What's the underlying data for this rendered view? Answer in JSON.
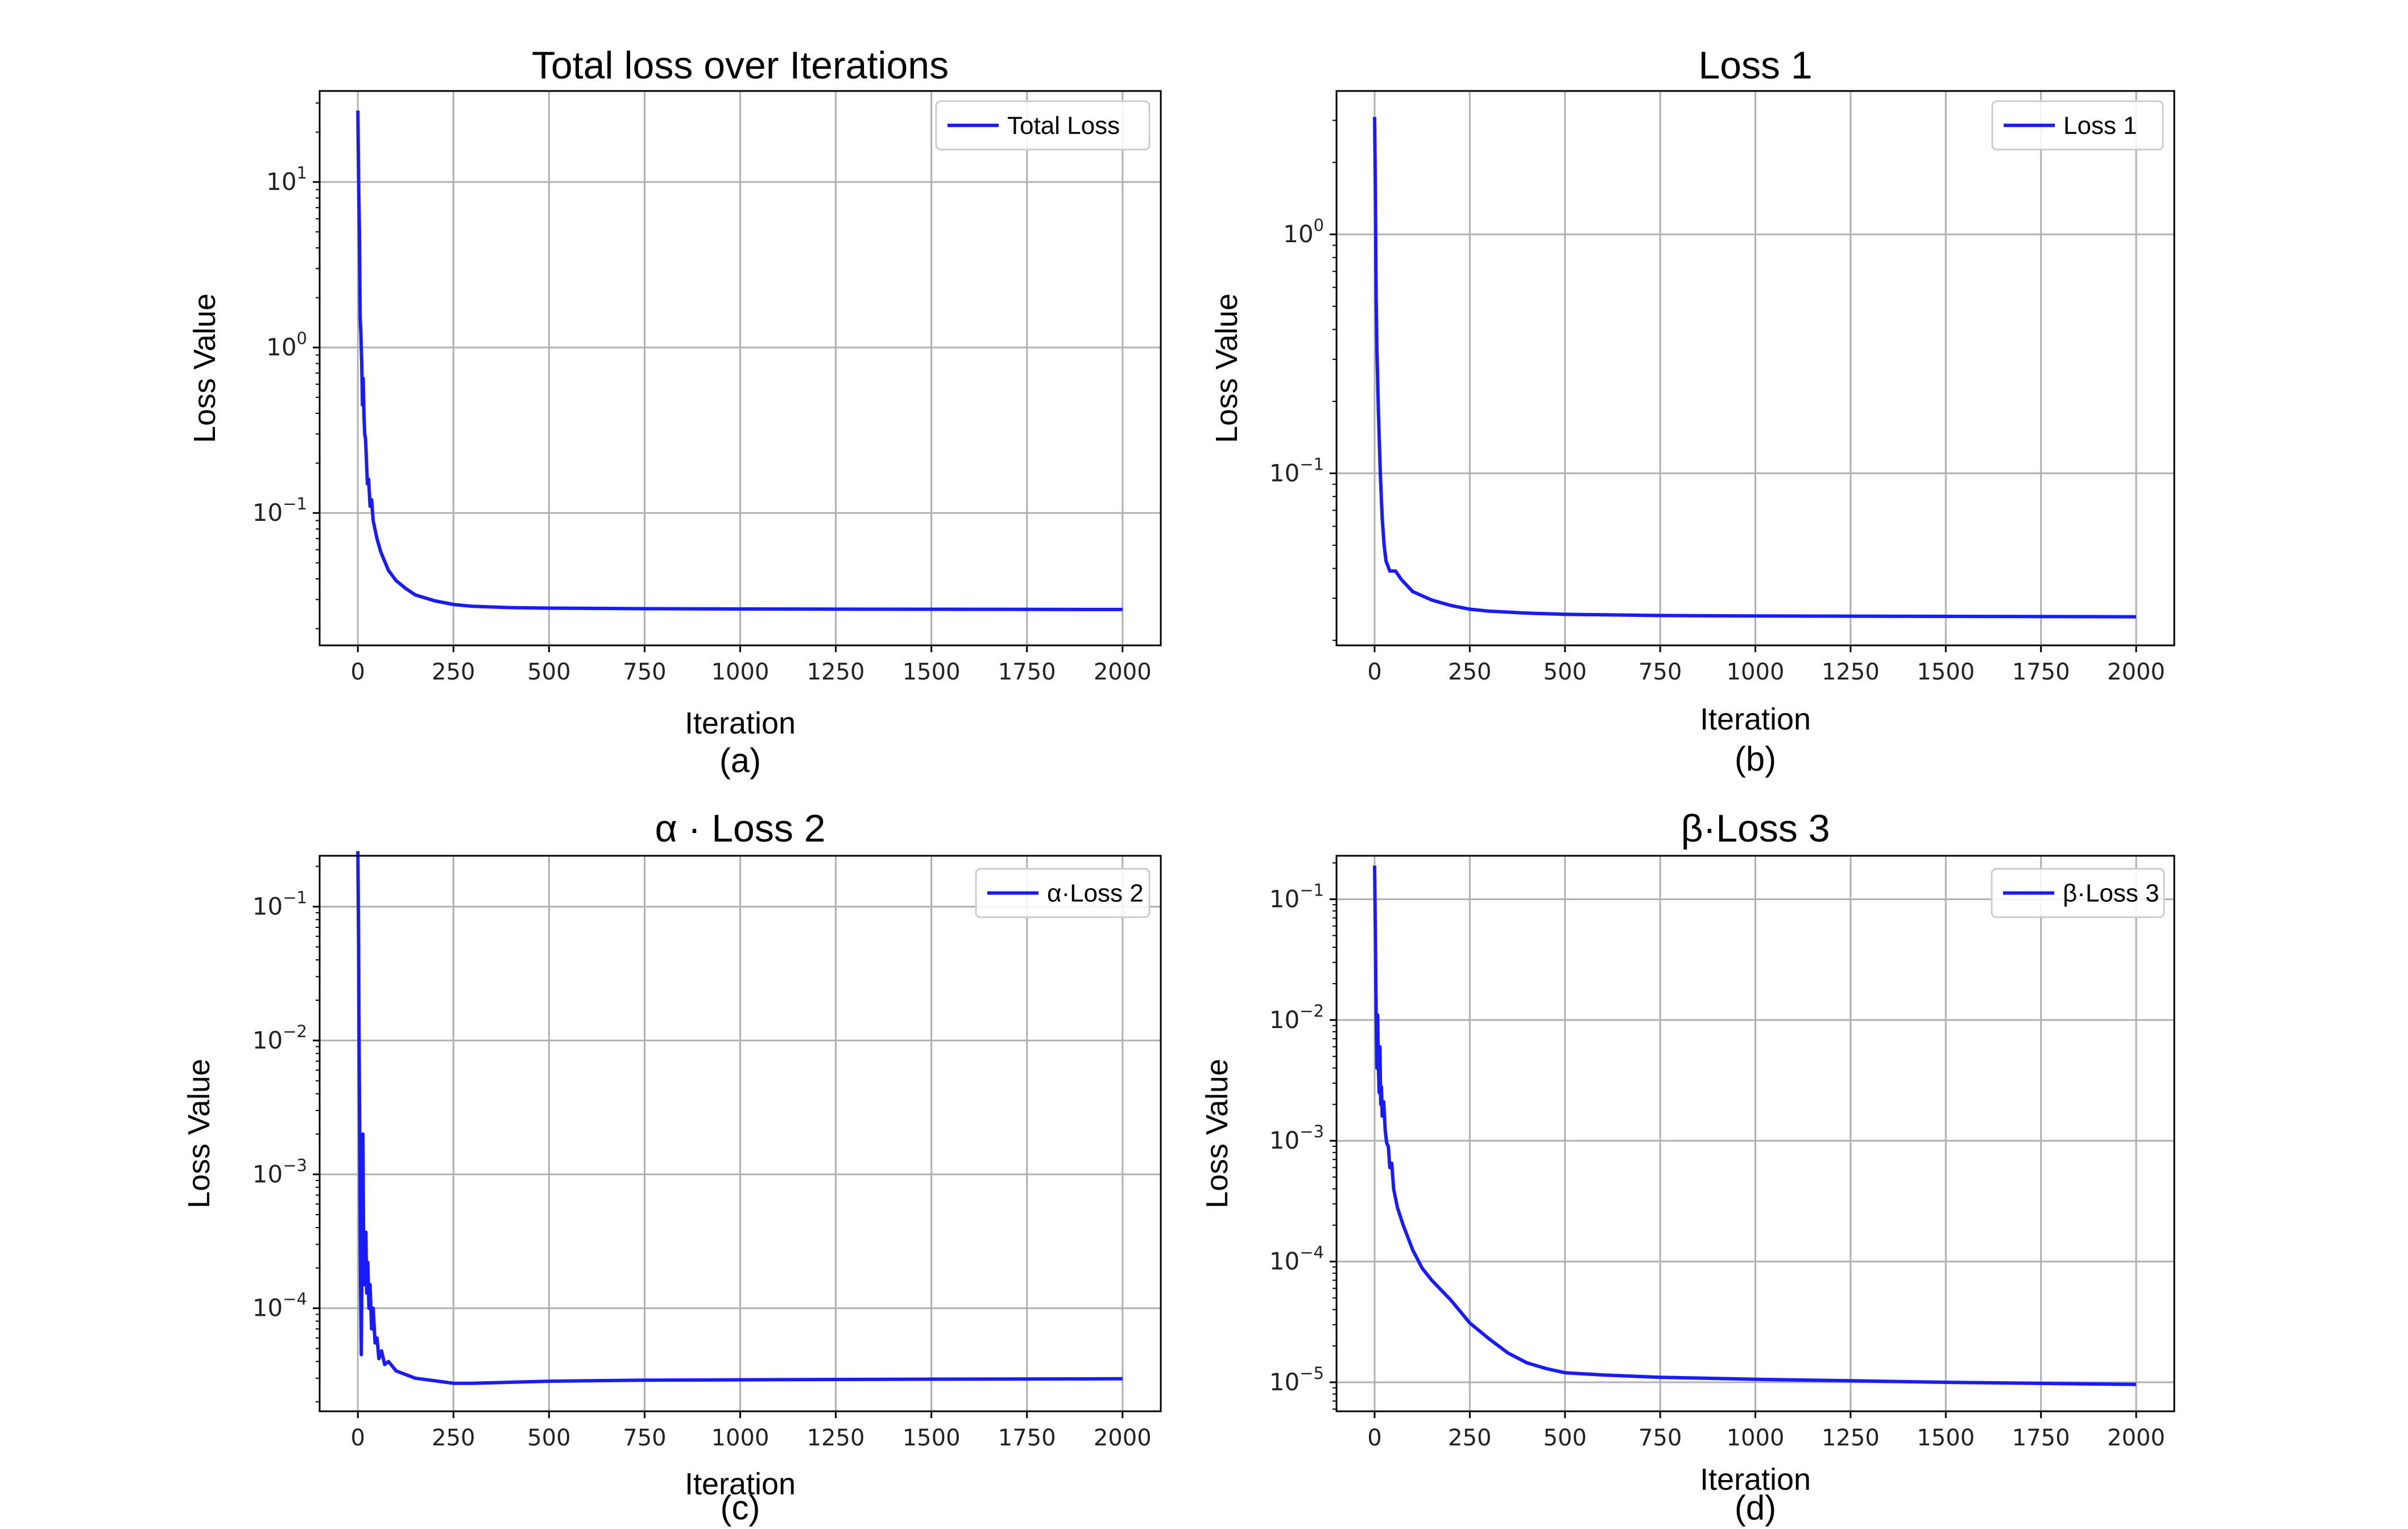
{
  "chart_data": [
    {
      "id": "a",
      "type": "line",
      "title": "Total loss over Iterations",
      "xlabel": "Iteration",
      "ylabel": "Loss Value",
      "caption": "(a)",
      "yscale": "log",
      "grid": true,
      "legend_position": "top-right",
      "xlim": [
        -100,
        2100
      ],
      "ylim_log10": [
        -1.8,
        1.55
      ],
      "xticks": [
        0,
        250,
        500,
        750,
        1000,
        1250,
        1500,
        1750,
        2000
      ],
      "yticks": [
        {
          "base": "10",
          "exp": "1",
          "value": 10
        },
        {
          "base": "10",
          "exp": "0",
          "value": 1
        },
        {
          "base": "10",
          "exp": "−1",
          "value": 0.1
        }
      ],
      "series": [
        {
          "name": "Total Loss",
          "color": "#1a1aff",
          "points": [
            [
              0,
              27
            ],
            [
              2,
              10
            ],
            [
              4,
              5
            ],
            [
              6,
              1.5
            ],
            [
              8,
              1.2
            ],
            [
              10,
              0.8
            ],
            [
              12,
              0.45
            ],
            [
              14,
              0.65
            ],
            [
              16,
              0.38
            ],
            [
              18,
              0.3
            ],
            [
              20,
              0.28
            ],
            [
              22,
              0.22
            ],
            [
              25,
              0.15
            ],
            [
              28,
              0.16
            ],
            [
              32,
              0.11
            ],
            [
              36,
              0.12
            ],
            [
              40,
              0.09
            ],
            [
              50,
              0.07
            ],
            [
              60,
              0.058
            ],
            [
              80,
              0.045
            ],
            [
              100,
              0.039
            ],
            [
              125,
              0.035
            ],
            [
              150,
              0.032
            ],
            [
              200,
              0.0295
            ],
            [
              250,
              0.028
            ],
            [
              300,
              0.0273
            ],
            [
              400,
              0.0268
            ],
            [
              500,
              0.0266
            ],
            [
              750,
              0.0264
            ],
            [
              1000,
              0.0263
            ],
            [
              1500,
              0.0262
            ],
            [
              2000,
              0.0261
            ]
          ]
        }
      ]
    },
    {
      "id": "b",
      "type": "line",
      "title": "Loss 1",
      "xlabel": "Iteration",
      "ylabel": "Loss Value",
      "caption": "(b)",
      "yscale": "log",
      "grid": true,
      "legend_position": "top-right",
      "xlim": [
        -100,
        2100
      ],
      "ylim_log10": [
        -1.72,
        0.6
      ],
      "xticks": [
        0,
        250,
        500,
        750,
        1000,
        1250,
        1500,
        1750,
        2000
      ],
      "yticks": [
        {
          "base": "10",
          "exp": "0",
          "value": 1
        },
        {
          "base": "10",
          "exp": "−1",
          "value": 0.1
        }
      ],
      "series": [
        {
          "name": "Loss 1",
          "color": "#1a1aff",
          "points": [
            [
              0,
              3.1
            ],
            [
              2,
              1.5
            ],
            [
              4,
              0.55
            ],
            [
              6,
              0.33
            ],
            [
              10,
              0.18
            ],
            [
              15,
              0.1
            ],
            [
              20,
              0.065
            ],
            [
              25,
              0.05
            ],
            [
              30,
              0.043
            ],
            [
              40,
              0.039
            ],
            [
              55,
              0.039
            ],
            [
              70,
              0.036
            ],
            [
              100,
              0.032
            ],
            [
              150,
              0.0295
            ],
            [
              200,
              0.028
            ],
            [
              250,
              0.027
            ],
            [
              300,
              0.0265
            ],
            [
              400,
              0.026
            ],
            [
              500,
              0.0257
            ],
            [
              750,
              0.0254
            ],
            [
              1000,
              0.0253
            ],
            [
              1500,
              0.0252
            ],
            [
              2000,
              0.0251
            ]
          ]
        }
      ]
    },
    {
      "id": "c",
      "type": "line",
      "title": "α · Loss 2",
      "xlabel": "Iteration",
      "ylabel": "Loss Value",
      "caption": "(c)",
      "yscale": "log",
      "grid": true,
      "legend_position": "top-right",
      "xlim": [
        -100,
        2100
      ],
      "ylim_log10": [
        -4.77,
        -0.62
      ],
      "xticks": [
        0,
        250,
        500,
        750,
        1000,
        1250,
        1500,
        1750,
        2000
      ],
      "yticks": [
        {
          "base": "10",
          "exp": "−1",
          "value": 0.1
        },
        {
          "base": "10",
          "exp": "−2",
          "value": 0.01
        },
        {
          "base": "10",
          "exp": "−3",
          "value": 0.001
        },
        {
          "base": "10",
          "exp": "−4",
          "value": 0.0001
        }
      ],
      "series": [
        {
          "name": "α·Loss 2",
          "color": "#1a1aff",
          "points": [
            [
              0,
              0.26
            ],
            [
              2,
              0.05
            ],
            [
              3,
              0.013
            ],
            [
              5,
              0.0014
            ],
            [
              7,
              0.00015
            ],
            [
              9,
              4.5e-05
            ],
            [
              11,
              0.00035
            ],
            [
              13,
              0.002
            ],
            [
              15,
              0.0003
            ],
            [
              17,
              0.00015
            ],
            [
              19,
              0.00018
            ],
            [
              21,
              0.00037
            ],
            [
              23,
              0.00013
            ],
            [
              26,
              0.00022
            ],
            [
              29,
              0.0001
            ],
            [
              32,
              0.00015
            ],
            [
              36,
              7e-05
            ],
            [
              40,
              0.0001
            ],
            [
              45,
              5.5e-05
            ],
            [
              50,
              6e-05
            ],
            [
              55,
              4.2e-05
            ],
            [
              62,
              4.8e-05
            ],
            [
              70,
              3.8e-05
            ],
            [
              80,
              4e-05
            ],
            [
              100,
              3.4e-05
            ],
            [
              150,
              3e-05
            ],
            [
              250,
              2.75e-05
            ],
            [
              300,
              2.75e-05
            ],
            [
              500,
              2.85e-05
            ],
            [
              750,
              2.9e-05
            ],
            [
              1000,
              2.92e-05
            ],
            [
              1500,
              2.95e-05
            ],
            [
              2000,
              2.97e-05
            ]
          ]
        }
      ]
    },
    {
      "id": "d",
      "type": "line",
      "title": "β·Loss 3",
      "xlabel": "Iteration",
      "ylabel": "Loss Value",
      "caption": "(d)",
      "yscale": "log",
      "grid": true,
      "legend_position": "top-right",
      "xlim": [
        -100,
        2100
      ],
      "ylim_log10": [
        -5.24,
        -0.64
      ],
      "xticks": [
        0,
        250,
        500,
        750,
        1000,
        1250,
        1500,
        1750,
        2000
      ],
      "yticks": [
        {
          "base": "10",
          "exp": "−1",
          "value": 0.1
        },
        {
          "base": "10",
          "exp": "−2",
          "value": 0.01
        },
        {
          "base": "10",
          "exp": "−3",
          "value": 0.001
        },
        {
          "base": "10",
          "exp": "−4",
          "value": 0.0001
        },
        {
          "base": "10",
          "exp": "−5",
          "value": 1e-05
        }
      ],
      "series": [
        {
          "name": "β·Loss 3",
          "color": "#1a1aff",
          "points": [
            [
              0,
              0.19
            ],
            [
              2,
              0.05
            ],
            [
              4,
              0.012
            ],
            [
              6,
              0.004
            ],
            [
              8,
              0.011
            ],
            [
              10,
              0.004
            ],
            [
              12,
              0.0025
            ],
            [
              14,
              0.006
            ],
            [
              16,
              0.002
            ],
            [
              18,
              0.0028
            ],
            [
              20,
              0.0016
            ],
            [
              24,
              0.0021
            ],
            [
              28,
              0.0012
            ],
            [
              32,
              0.00095
            ],
            [
              36,
              0.0009
            ],
            [
              40,
              0.0006
            ],
            [
              45,
              0.00065
            ],
            [
              50,
              0.0004
            ],
            [
              60,
              0.00028
            ],
            [
              75,
              0.0002
            ],
            [
              100,
              0.000125
            ],
            [
              125,
              8.8e-05
            ],
            [
              150,
              7e-05
            ],
            [
              200,
              4.8e-05
            ],
            [
              250,
              3.1e-05
            ],
            [
              300,
              2.3e-05
            ],
            [
              350,
              1.75e-05
            ],
            [
              400,
              1.45e-05
            ],
            [
              450,
              1.3e-05
            ],
            [
              500,
              1.2e-05
            ],
            [
              600,
              1.15e-05
            ],
            [
              750,
              1.1e-05
            ],
            [
              1000,
              1.06e-05
            ],
            [
              1250,
              1.03e-05
            ],
            [
              1500,
              1e-05
            ],
            [
              1750,
              9.8e-06
            ],
            [
              2000,
              9.6e-06
            ]
          ]
        }
      ]
    }
  ]
}
